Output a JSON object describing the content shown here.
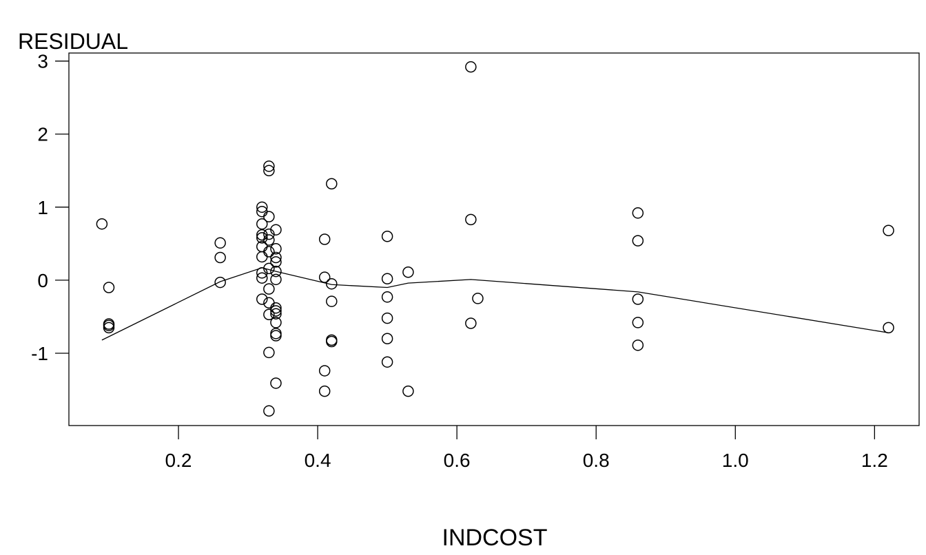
{
  "chart_data": {
    "type": "scatter",
    "title": "",
    "xlabel": "INDCOST",
    "ylabel": "RESIDUAL",
    "xlim": [
      0.0426,
      1.264
    ],
    "ylim": [
      -1.99,
      3.11
    ],
    "xticks": [
      0.2,
      0.4,
      0.6,
      0.8,
      1.0,
      1.2
    ],
    "xtick_labels": [
      "0.2",
      "0.4",
      "0.6",
      "0.8",
      "1.0",
      "1.2"
    ],
    "yticks": [
      3,
      2,
      1,
      0,
      -1
    ],
    "ytick_labels": [
      "3",
      "2",
      "1",
      "0",
      "-1"
    ],
    "grid": false,
    "marker": "open-circle",
    "points": [
      [
        0.09,
        0.77
      ],
      [
        0.1,
        -0.1
      ],
      [
        0.1,
        -0.6
      ],
      [
        0.1,
        -0.62
      ],
      [
        0.1,
        -0.65
      ],
      [
        0.26,
        0.51
      ],
      [
        0.26,
        0.31
      ],
      [
        0.26,
        -0.03
      ],
      [
        0.32,
        1.0
      ],
      [
        0.32,
        0.94
      ],
      [
        0.32,
        0.77
      ],
      [
        0.32,
        0.62
      ],
      [
        0.32,
        0.58
      ],
      [
        0.32,
        0.46
      ],
      [
        0.32,
        0.32
      ],
      [
        0.32,
        0.1
      ],
      [
        0.32,
        0.03
      ],
      [
        0.32,
        -0.26
      ],
      [
        0.33,
        1.56
      ],
      [
        0.33,
        1.5
      ],
      [
        0.33,
        0.87
      ],
      [
        0.33,
        0.63
      ],
      [
        0.33,
        0.55
      ],
      [
        0.33,
        0.39
      ],
      [
        0.33,
        0.16
      ],
      [
        0.33,
        -0.12
      ],
      [
        0.33,
        -0.31
      ],
      [
        0.33,
        -0.47
      ],
      [
        0.33,
        -0.99
      ],
      [
        0.33,
        -1.79
      ],
      [
        0.34,
        0.69
      ],
      [
        0.34,
        0.43
      ],
      [
        0.34,
        0.31
      ],
      [
        0.34,
        0.25
      ],
      [
        0.34,
        0.12
      ],
      [
        0.34,
        0.01
      ],
      [
        0.34,
        -0.38
      ],
      [
        0.34,
        -0.42
      ],
      [
        0.34,
        -0.46
      ],
      [
        0.34,
        -0.58
      ],
      [
        0.34,
        -0.73
      ],
      [
        0.34,
        -0.76
      ],
      [
        0.34,
        -1.41
      ],
      [
        0.41,
        0.56
      ],
      [
        0.41,
        0.04
      ],
      [
        0.41,
        -1.24
      ],
      [
        0.41,
        -1.52
      ],
      [
        0.42,
        1.32
      ],
      [
        0.42,
        -0.05
      ],
      [
        0.42,
        -0.29
      ],
      [
        0.42,
        -0.82
      ],
      [
        0.42,
        -0.84
      ],
      [
        0.5,
        0.6
      ],
      [
        0.5,
        0.02
      ],
      [
        0.5,
        -0.23
      ],
      [
        0.5,
        -0.52
      ],
      [
        0.5,
        -0.8
      ],
      [
        0.5,
        -1.12
      ],
      [
        0.53,
        0.11
      ],
      [
        0.53,
        -1.52
      ],
      [
        0.62,
        2.92
      ],
      [
        0.62,
        0.83
      ],
      [
        0.62,
        -0.59
      ],
      [
        0.63,
        -0.25
      ],
      [
        0.86,
        0.92
      ],
      [
        0.86,
        0.54
      ],
      [
        0.86,
        -0.26
      ],
      [
        0.86,
        -0.58
      ],
      [
        0.86,
        -0.89
      ],
      [
        1.22,
        0.68
      ],
      [
        1.22,
        -0.65
      ]
    ],
    "smooth_line": [
      [
        0.09,
        -0.82
      ],
      [
        0.26,
        -0.02
      ],
      [
        0.32,
        0.17
      ],
      [
        0.34,
        0.12
      ],
      [
        0.42,
        -0.06
      ],
      [
        0.5,
        -0.1
      ],
      [
        0.53,
        -0.04
      ],
      [
        0.62,
        0.01
      ],
      [
        0.86,
        -0.16
      ],
      [
        1.22,
        -0.72
      ]
    ]
  }
}
